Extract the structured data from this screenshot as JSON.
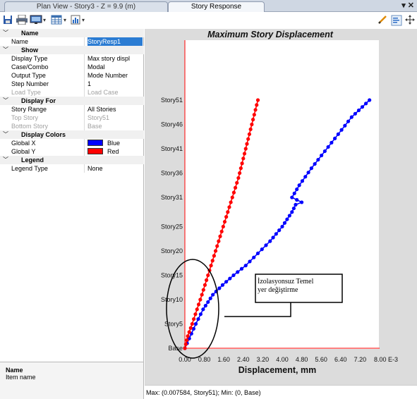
{
  "tabs": [
    {
      "label": "Plan View - Story3 - Z = 9.9 (m)"
    },
    {
      "label": "Story Response"
    }
  ],
  "window_controls": "▾ ✕",
  "toolbar": {
    "icons": [
      "save-icon",
      "print-icon",
      "display-icon",
      "table-icon",
      "chart-icon",
      "pencil-icon",
      "options-icon",
      "move-icon"
    ]
  },
  "properties": {
    "categories": [
      {
        "title": "Name",
        "rows": [
          {
            "key": "Name",
            "value": "StoryResp1",
            "selected": true
          }
        ]
      },
      {
        "title": "Show",
        "rows": [
          {
            "key": "Display Type",
            "value": "Max story displ"
          },
          {
            "key": "Case/Combo",
            "value": "Modal"
          },
          {
            "key": "Output Type",
            "value": "Mode Number"
          },
          {
            "key": "Step Number",
            "value": "1"
          },
          {
            "key": "Load Type",
            "value": "Load Case",
            "disabled": true
          }
        ]
      },
      {
        "title": "Display For",
        "rows": [
          {
            "key": "Story Range",
            "value": "All Stories"
          },
          {
            "key": "Top Story",
            "value": "Story51",
            "disabled": true
          },
          {
            "key": "Bottom Story",
            "value": "Base",
            "disabled": true
          }
        ]
      },
      {
        "title": "Display Colors",
        "rows": [
          {
            "key": "Global X",
            "value": "Blue",
            "swatch": "#0000ff"
          },
          {
            "key": "Global Y",
            "value": "Red",
            "swatch": "#ff0000"
          }
        ]
      },
      {
        "title": "Legend",
        "rows": [
          {
            "key": "Legend Type",
            "value": "None"
          }
        ]
      }
    ],
    "description": {
      "title": "Name",
      "text": "Item name"
    }
  },
  "status": {
    "text": "Max: (0.007584, Story51);   Min: (0, Base)"
  },
  "colors": {
    "global_x": "#0000ff",
    "global_y": "#ff0000",
    "axis": "#ff0000"
  },
  "chart_data": {
    "type": "line",
    "title": "Maximum Story Displacement",
    "xlabel": "Displacement, mm",
    "x_tick_labels": [
      "0.00",
      "0.80",
      "1.60",
      "2.40",
      "3.20",
      "4.00",
      "4.80",
      "5.60",
      "6.40",
      "7.20",
      "8.00 E-3"
    ],
    "x_ticks": [
      0,
      0.8,
      1.6,
      2.4,
      3.2,
      4.0,
      4.8,
      5.6,
      6.4,
      7.2,
      8.0
    ],
    "xlim": [
      0,
      8.0
    ],
    "ylim": [
      0,
      51
    ],
    "y_ticks": [
      {
        "label": "Base",
        "story": 0
      },
      {
        "label": "Story5",
        "story": 5
      },
      {
        "label": "Story10",
        "story": 10
      },
      {
        "label": "Story15",
        "story": 15
      },
      {
        "label": "Story20",
        "story": 20
      },
      {
        "label": "Story25",
        "story": 25
      },
      {
        "label": "Story31",
        "story": 31
      },
      {
        "label": "Story36",
        "story": 36
      },
      {
        "label": "Story41",
        "story": 41
      },
      {
        "label": "Story46",
        "story": 46
      },
      {
        "label": "Story51",
        "story": 51
      }
    ],
    "grid": false,
    "legend": "none",
    "series": [
      {
        "name": "Global X",
        "color": "#0000ff",
        "points": [
          [
            0,
            0
          ],
          [
            0.18,
            2
          ],
          [
            0.45,
            5
          ],
          [
            0.75,
            8
          ],
          [
            1.15,
            11
          ],
          [
            1.55,
            13
          ],
          [
            2.0,
            15
          ],
          [
            2.5,
            17
          ],
          [
            3.0,
            19.5
          ],
          [
            3.5,
            22
          ],
          [
            4.0,
            25
          ],
          [
            4.4,
            28
          ],
          [
            4.55,
            29.5
          ],
          [
            4.8,
            30
          ],
          [
            4.4,
            31
          ],
          [
            4.7,
            33.5
          ],
          [
            5.2,
            37
          ],
          [
            5.75,
            40.5
          ],
          [
            6.3,
            44
          ],
          [
            6.85,
            47.5
          ],
          [
            7.584,
            51
          ]
        ]
      },
      {
        "name": "Global Y",
        "color": "#ff0000",
        "points": [
          [
            0,
            0
          ],
          [
            0.12,
            2.5
          ],
          [
            0.3,
            5
          ],
          [
            0.5,
            8
          ],
          [
            0.7,
            11
          ],
          [
            0.95,
            15
          ],
          [
            1.2,
            19
          ],
          [
            1.45,
            23
          ],
          [
            1.7,
            27
          ],
          [
            1.95,
            31
          ],
          [
            2.2,
            35
          ],
          [
            2.4,
            39
          ],
          [
            2.6,
            43
          ],
          [
            2.8,
            47
          ],
          [
            3.0,
            51
          ]
        ]
      }
    ],
    "annotation": {
      "text_line1": "İzolasyonsuz Temel",
      "text_line2": "yer değiştirme"
    }
  }
}
